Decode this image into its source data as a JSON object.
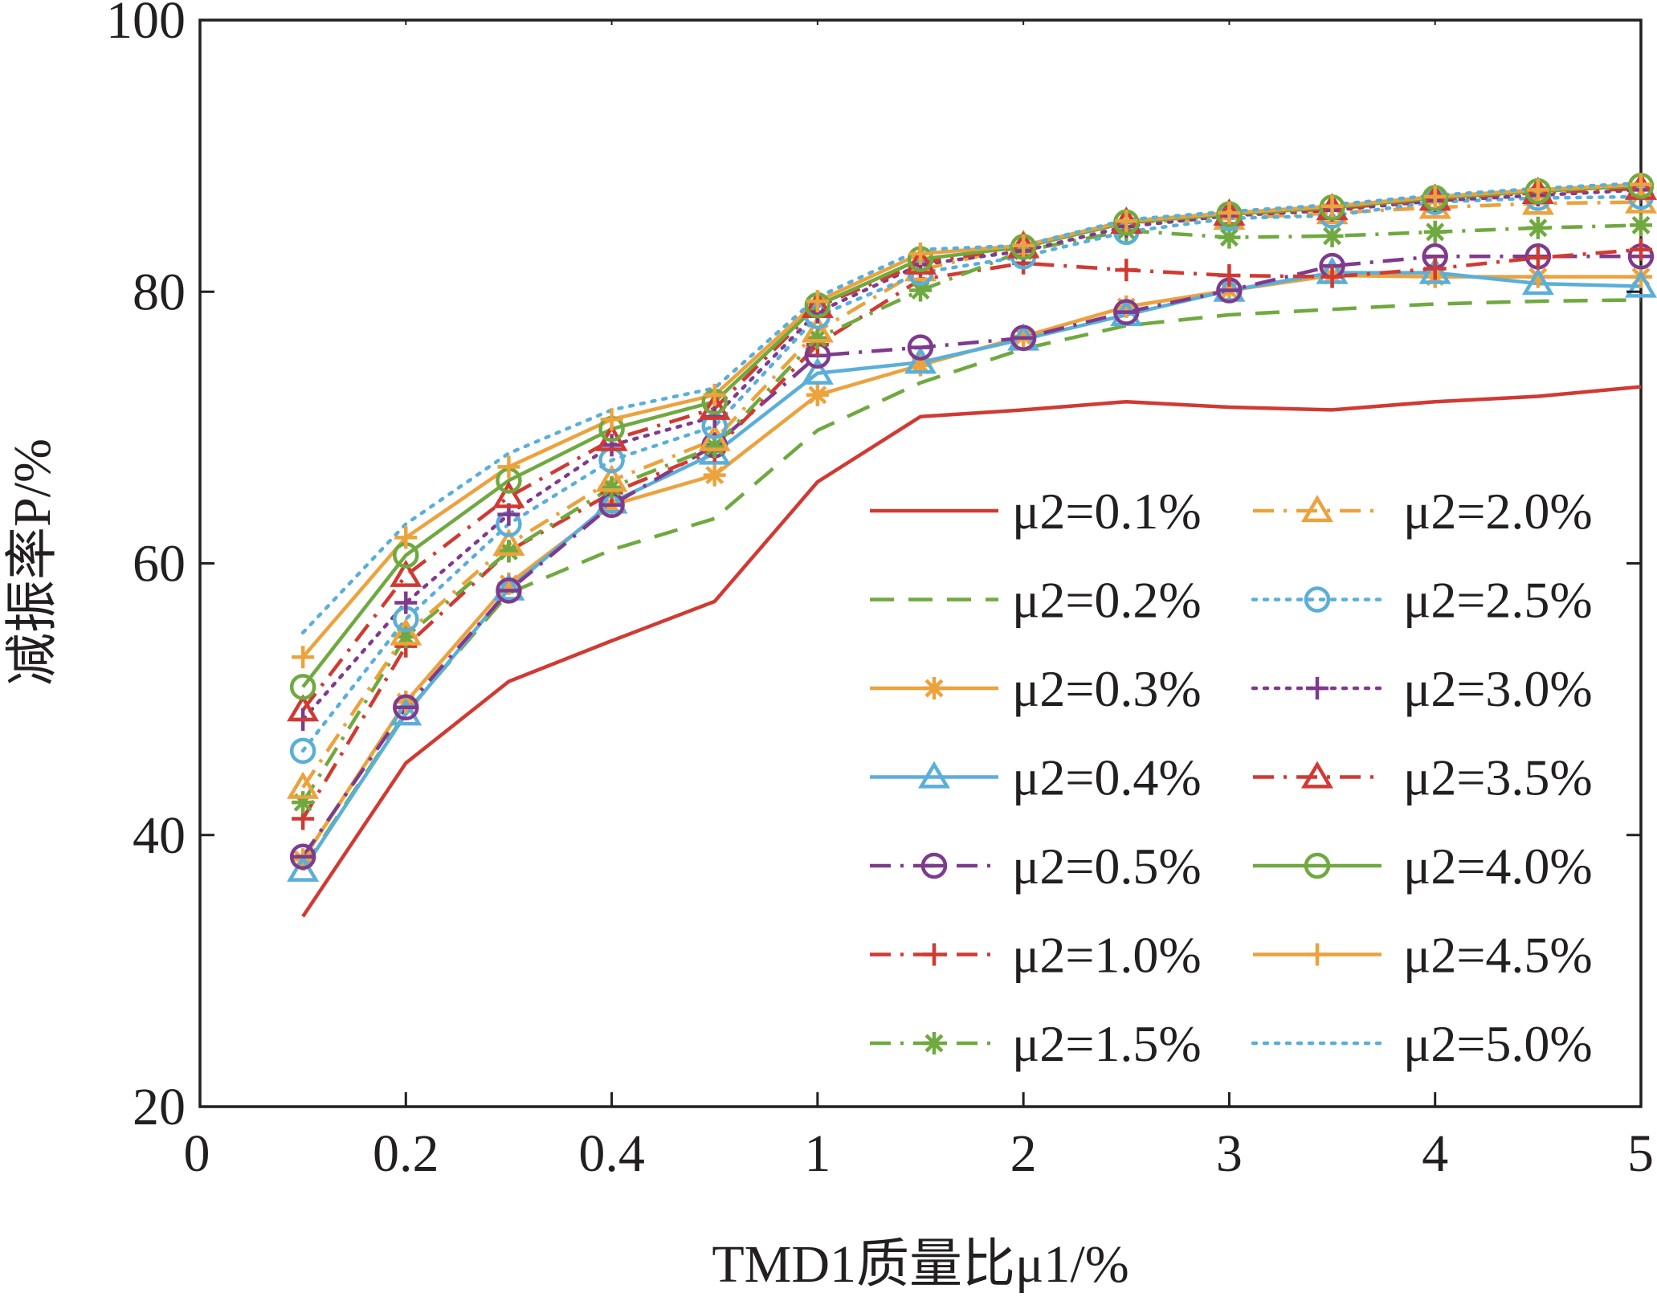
{
  "chart_data": {
    "type": "line",
    "xlabel": "TMD1质量比μ1/%",
    "ylabel": "减振率P/%",
    "ylim": [
      20,
      100
    ],
    "y_ticks": [
      "20",
      "40",
      "60",
      "80",
      "100"
    ],
    "x_ticks": [
      "0",
      "0.2",
      "0.4",
      "1",
      "2",
      "3",
      "4",
      "5"
    ],
    "x": [
      "0.1",
      "0.2",
      "0.3",
      "0.4",
      "0.5",
      "1.0",
      "1.5",
      "2.0",
      "2.5",
      "3.0",
      "3.5",
      "4.0",
      "4.5",
      "5.0"
    ],
    "grid": false,
    "legend_position": "bottom-right",
    "series": [
      {
        "name": "μ2=0.1%",
        "color": "#d03a33",
        "dash": "solid",
        "marker": "none",
        "values": [
          34,
          45.3,
          51.3,
          54.3,
          57.2,
          66,
          70.8,
          71.3,
          71.9,
          71.5,
          71.3,
          71.9,
          72.3,
          73
        ]
      },
      {
        "name": "μ2=0.2%",
        "color": "#6fa93f",
        "dash": "dash",
        "marker": "none",
        "values": [
          37.5,
          49,
          57.8,
          61,
          63.3,
          69.8,
          73.3,
          75.8,
          77.5,
          78.3,
          78.7,
          79.1,
          79.3,
          79.4
        ]
      },
      {
        "name": "μ2=0.3%",
        "color": "#eca23d",
        "dash": "solid",
        "marker": "asterisk",
        "values": [
          38.2,
          49.8,
          58.5,
          64.3,
          66.5,
          72.4,
          74.6,
          76.7,
          78.9,
          80.1,
          81.2,
          81.1,
          81.1,
          81.1
        ]
      },
      {
        "name": "μ2=0.4%",
        "color": "#5aafd9",
        "dash": "solid",
        "marker": "triangle",
        "values": [
          37.4,
          48.9,
          58.1,
          64.5,
          68.1,
          74,
          74.8,
          76.5,
          78.3,
          80.1,
          81.4,
          81.4,
          80.6,
          80.4
        ]
      },
      {
        "name": "μ2=0.5%",
        "color": "#7e3b8e",
        "dash": "dashdot",
        "marker": "circle-bar",
        "values": [
          38.4,
          49.4,
          58,
          64.3,
          68.7,
          75.3,
          75.9,
          76.6,
          78.5,
          80.1,
          81.9,
          82.6,
          82.6,
          82.6
        ]
      },
      {
        "name": "μ2=1.0%",
        "color": "#d03a33",
        "dash": "dashdot",
        "marker": "plus",
        "values": [
          41.2,
          53.9,
          60.9,
          65.2,
          68.3,
          76.1,
          80.9,
          82.1,
          81.6,
          81.2,
          81.1,
          81.7,
          82.5,
          83.1
        ]
      },
      {
        "name": "μ2=1.5%",
        "color": "#6fa93f",
        "dash": "dashdot",
        "marker": "asterisk",
        "values": [
          42.4,
          54.6,
          60.9,
          65.6,
          68.6,
          76.6,
          80.1,
          83,
          84.5,
          84,
          84.1,
          84.4,
          84.7,
          84.9
        ]
      },
      {
        "name": "μ2=2.0%",
        "color": "#eca23d",
        "dash": "dashdot",
        "marker": "triangle",
        "values": [
          43.5,
          54.8,
          61.4,
          66.1,
          69.1,
          77.1,
          81.6,
          83.4,
          85.1,
          85.4,
          85.8,
          86.2,
          86.5,
          86.6
        ]
      },
      {
        "name": "μ2=2.5%",
        "color": "#5aafd9",
        "dash": "dot",
        "marker": "circle",
        "values": [
          46.2,
          55.9,
          62.9,
          67.6,
          70.1,
          78.2,
          81.4,
          82.6,
          84.4,
          85.4,
          85.6,
          86.6,
          86.9,
          87
        ]
      },
      {
        "name": "μ2=3.0%",
        "color": "#7e3b8e",
        "dash": "dot",
        "marker": "plus",
        "values": [
          48.5,
          57.1,
          63.6,
          68.7,
          70.8,
          78.5,
          82,
          83,
          84.8,
          85.6,
          86,
          86.7,
          87.1,
          87.5
        ]
      },
      {
        "name": "μ2=3.5%",
        "color": "#d03a33",
        "dash": "dashdot",
        "marker": "triangle",
        "values": [
          49.2,
          59.1,
          64.9,
          69.1,
          71.4,
          78.9,
          82.1,
          83.3,
          85.1,
          85.7,
          86.1,
          86.8,
          87.3,
          87.6
        ]
      },
      {
        "name": "μ2=4.0%",
        "color": "#6fa93f",
        "dash": "solid",
        "marker": "circle",
        "values": [
          50.9,
          60.6,
          66.1,
          69.9,
          71.9,
          79,
          82.4,
          83.3,
          85.1,
          85.7,
          86.2,
          86.9,
          87.4,
          87.8
        ]
      },
      {
        "name": "μ2=4.5%",
        "color": "#eca23d",
        "dash": "solid",
        "marker": "plus",
        "values": [
          53.1,
          61.9,
          67.1,
          70.6,
          72.4,
          79.3,
          82.8,
          83.4,
          85.2,
          85.8,
          86.3,
          87,
          87.5,
          87.9
        ]
      },
      {
        "name": "μ2=5.0%",
        "color": "#5aafd9",
        "dash": "dot",
        "marker": "none",
        "values": [
          54.9,
          62.9,
          68.1,
          71.3,
          72.9,
          79.6,
          83.1,
          83.4,
          85.3,
          85.9,
          86.4,
          87.1,
          87.6,
          88
        ]
      }
    ]
  }
}
